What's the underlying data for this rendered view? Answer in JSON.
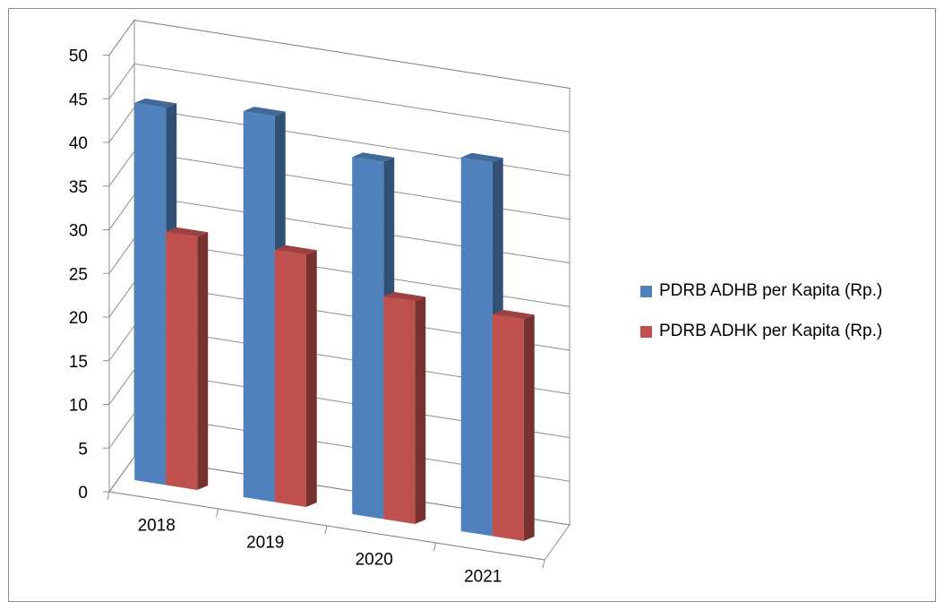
{
  "chart_data": {
    "type": "bar",
    "categories": [
      "2018",
      "2019",
      "2020",
      "2021"
    ],
    "series": [
      {
        "name": "PDRB ADHB per Kapita (Rp.)",
        "values": [
          43.2,
          44.2,
          40.9,
          42.8
        ],
        "color": "#4f81bd"
      },
      {
        "name": "PDRB ADHK per Kapita (Rp.)",
        "values": [
          29.0,
          28.9,
          25.5,
          25.4
        ],
        "color": "#c0504d"
      }
    ],
    "y_ticks": [
      "0",
      "5",
      "10",
      "15",
      "20",
      "25",
      "30",
      "35",
      "40",
      "45",
      "50"
    ],
    "ylim": [
      0,
      50
    ],
    "grid": true,
    "style": "3d-clustered-column",
    "legend_position": "right"
  }
}
